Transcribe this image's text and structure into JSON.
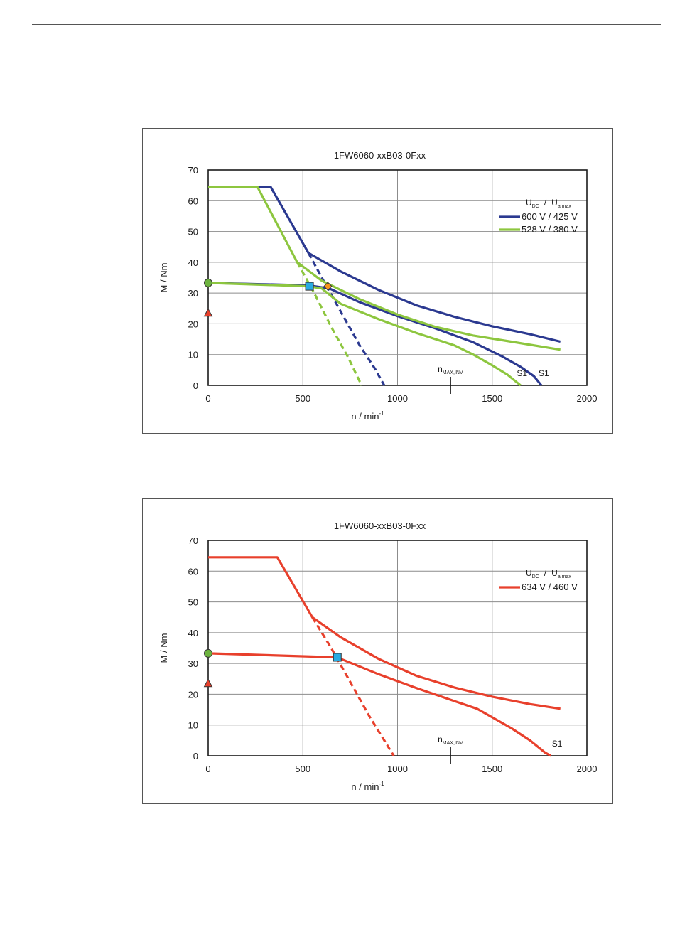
{
  "chart_data": [
    {
      "type": "line",
      "title": "1FW6060-xxB03-0Fxx",
      "xlabel": {
        "base": "n / min",
        "sup": "-1"
      },
      "ylabel": "M / Nm",
      "xlim": [
        0,
        2000
      ],
      "ylim": [
        0,
        70
      ],
      "xticks": [
        0,
        500,
        1000,
        1500,
        2000
      ],
      "yticks": [
        0,
        10,
        20,
        30,
        40,
        50,
        60,
        70
      ],
      "grid": true,
      "legend_position": "right",
      "legend_title": {
        "u1": "U",
        "s1": "DC",
        "slash": "/",
        "u2": "U",
        "s2": "a max"
      },
      "series": [
        {
          "name": "600 V / 425 V",
          "color": "#2b3990",
          "segments": [
            {
              "style": "solid",
              "points": [
                [
                  0,
                  64.5
                ],
                [
                  330,
                  64.5
                ],
                [
                  530,
                  43
                ],
                [
                  700,
                  37
                ],
                [
                  900,
                  31
                ],
                [
                  1100,
                  26
                ],
                [
                  1300,
                  22.3
                ],
                [
                  1500,
                  19.2
                ],
                [
                  1700,
                  16.6
                ],
                [
                  1860,
                  14.2
                ]
              ]
            },
            {
              "style": "solid",
              "points": [
                [
                  0,
                  33.3
                ],
                [
                  530,
                  32.5
                ],
                [
                  640,
                  31.5
                ],
                [
                  800,
                  27
                ],
                [
                  1000,
                  22.5
                ],
                [
                  1200,
                  18.5
                ],
                [
                  1400,
                  14
                ],
                [
                  1550,
                  9.5
                ],
                [
                  1650,
                  6
                ],
                [
                  1720,
                  3
                ],
                [
                  1760,
                  0
                ]
              ]
            },
            {
              "style": "dashed",
              "points": [
                [
                  530,
                  43
                ],
                [
                  600,
                  35
                ],
                [
                  700,
                  24
                ],
                [
                  800,
                  13
                ],
                [
                  880,
                  5.5
                ],
                [
                  930,
                  0
                ]
              ]
            }
          ]
        },
        {
          "name": "528 V / 380 V",
          "color": "#8dc63f",
          "segments": [
            {
              "style": "solid",
              "points": [
                [
                  0,
                  64.5
                ],
                [
                  260,
                  64.5
                ],
                [
                  470,
                  40
                ],
                [
                  600,
                  34
                ],
                [
                  800,
                  28
                ],
                [
                  1000,
                  23
                ],
                [
                  1200,
                  19
                ],
                [
                  1400,
                  16.2
                ],
                [
                  1600,
                  14.2
                ],
                [
                  1860,
                  11.6
                ]
              ]
            },
            {
              "style": "solid",
              "points": [
                [
                  0,
                  33.3
                ],
                [
                  530,
                  32.2
                ],
                [
                  600,
                  31.5
                ],
                [
                  700,
                  26.5
                ],
                [
                  900,
                  21.5
                ],
                [
                  1100,
                  17
                ],
                [
                  1300,
                  13
                ],
                [
                  1400,
                  10
                ],
                [
                  1500,
                  6.5
                ],
                [
                  1580,
                  3.5
                ],
                [
                  1650,
                  0
                ]
              ]
            },
            {
              "style": "dashed",
              "points": [
                [
                  470,
                  40
                ],
                [
                  560,
                  30
                ],
                [
                  650,
                  19
                ],
                [
                  740,
                  9
                ],
                [
                  810,
                  0
                ]
              ]
            }
          ]
        }
      ],
      "markers": [
        {
          "shape": "circle",
          "x": 0,
          "y": 33.3,
          "color": "#6db33f"
        },
        {
          "shape": "triangle",
          "x": 0,
          "y": 23.5,
          "color": "#e8402c"
        },
        {
          "shape": "square",
          "x": 535,
          "y": 32.2,
          "color": "#29abe2"
        },
        {
          "shape": "diamond",
          "x": 632,
          "y": 32.2,
          "color": "#f7941d"
        }
      ],
      "annotations": [
        {
          "id": "nmax",
          "base": "n",
          "sub": "MAX,INV",
          "x": 1280
        },
        {
          "id": "s1-a",
          "text": "S1",
          "x": 1630,
          "y": 3
        },
        {
          "id": "s1-b",
          "text": "S1",
          "x": 1745,
          "y": 3
        }
      ]
    },
    {
      "type": "line",
      "title": "1FW6060-xxB03-0Fxx",
      "xlabel": {
        "base": "n / min",
        "sup": "-1"
      },
      "ylabel": "M / Nm",
      "xlim": [
        0,
        2000
      ],
      "ylim": [
        0,
        70
      ],
      "xticks": [
        0,
        500,
        1000,
        1500,
        2000
      ],
      "yticks": [
        0,
        10,
        20,
        30,
        40,
        50,
        60,
        70
      ],
      "grid": true,
      "legend_position": "right",
      "legend_title": {
        "u1": "U",
        "s1": "DC",
        "slash": "/",
        "u2": "U",
        "s2": "a max"
      },
      "series": [
        {
          "name": "634 V / 460 V",
          "color": "#e8402c",
          "segments": [
            {
              "style": "solid",
              "points": [
                [
                  0,
                  64.5
                ],
                [
                  365,
                  64.5
                ],
                [
                  550,
                  45
                ],
                [
                  700,
                  38.5
                ],
                [
                  900,
                  31.5
                ],
                [
                  1100,
                  26
                ],
                [
                  1300,
                  22.2
                ],
                [
                  1500,
                  19.2
                ],
                [
                  1700,
                  16.8
                ],
                [
                  1860,
                  15.3
                ]
              ]
            },
            {
              "style": "solid",
              "points": [
                [
                  0,
                  33.3
                ],
                [
                  680,
                  32
                ],
                [
                  760,
                  30
                ],
                [
                  900,
                  26.5
                ],
                [
                  1100,
                  22
                ],
                [
                  1300,
                  17.8
                ],
                [
                  1420,
                  15.3
                ],
                [
                  1500,
                  12.5
                ],
                [
                  1600,
                  9
                ],
                [
                  1700,
                  5
                ],
                [
                  1780,
                  1
                ],
                [
                  1810,
                  0
                ]
              ]
            },
            {
              "style": "dashed",
              "points": [
                [
                  550,
                  45
                ],
                [
                  650,
                  35
                ],
                [
                  750,
                  24
                ],
                [
                  850,
                  13
                ],
                [
                  940,
                  4
                ],
                [
                  980,
                  0
                ]
              ]
            }
          ]
        }
      ],
      "markers": [
        {
          "shape": "circle",
          "x": 0,
          "y": 33.3,
          "color": "#6db33f"
        },
        {
          "shape": "triangle",
          "x": 0,
          "y": 23.5,
          "color": "#e8402c"
        },
        {
          "shape": "square",
          "x": 682,
          "y": 32,
          "color": "#29abe2"
        }
      ],
      "annotations": [
        {
          "id": "nmax",
          "base": "n",
          "sub": "MAX,INV",
          "x": 1280
        },
        {
          "id": "s1-a",
          "text": "S1",
          "x": 1815,
          "y": 3
        }
      ]
    }
  ]
}
